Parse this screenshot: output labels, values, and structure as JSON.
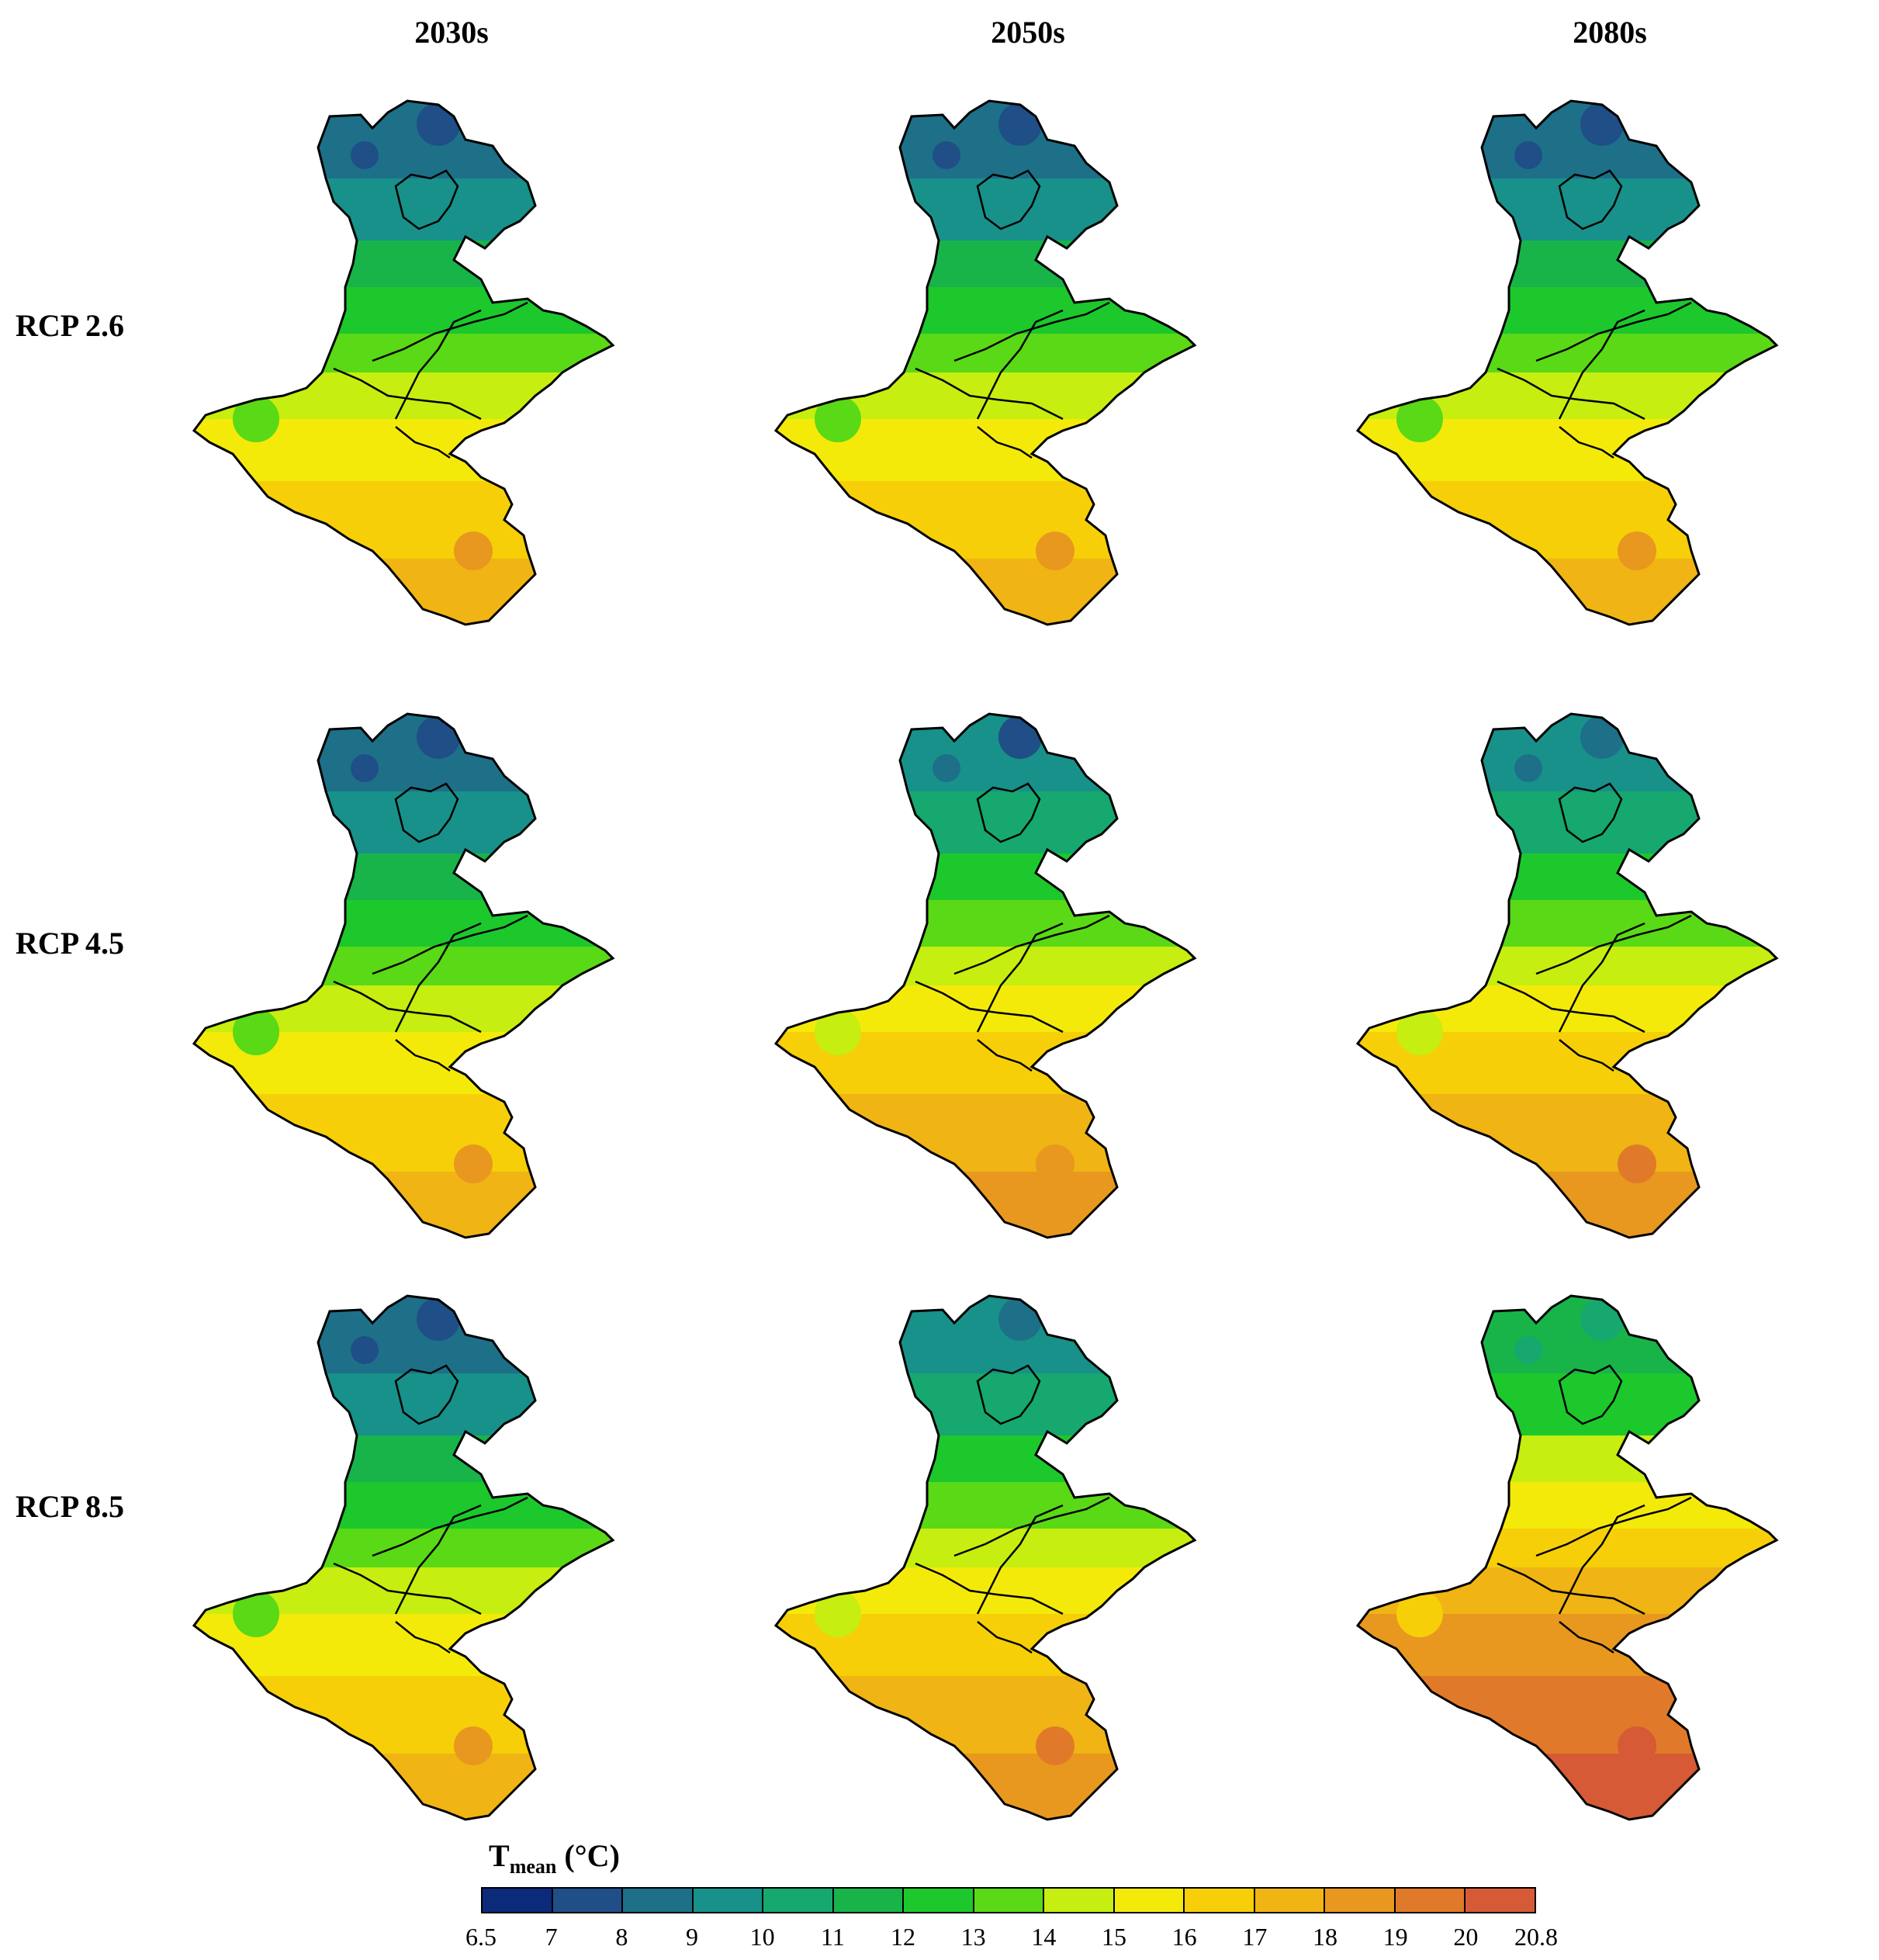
{
  "columns": [
    "2030s",
    "2050s",
    "2080s"
  ],
  "rows": [
    "RCP 2.6",
    "RCP 4.5",
    "RCP 8.5"
  ],
  "legend": {
    "title_main": "T",
    "title_sub": "mean",
    "title_unit": " (°C)",
    "ticks": [
      "6.5",
      "7",
      "8",
      "9",
      "10",
      "11",
      "12",
      "13",
      "14",
      "15",
      "16",
      "17",
      "18",
      "19",
      "20",
      "20.8"
    ],
    "colors": [
      "#0b2a7a",
      "#1f4f86",
      "#1d7088",
      "#18918a",
      "#16a86f",
      "#18b44a",
      "#1cc82c",
      "#5ad916",
      "#c6ee10",
      "#f4ea0a",
      "#f6cf08",
      "#f0b414",
      "#e8981e",
      "#e07a2a",
      "#d65a36"
    ]
  },
  "panels": [
    {
      "row": "RCP 2.6",
      "col": "2030s",
      "shift": 0
    },
    {
      "row": "RCP 2.6",
      "col": "2050s",
      "shift": 0.2
    },
    {
      "row": "RCP 2.6",
      "col": "2080s",
      "shift": 0.1
    },
    {
      "row": "RCP 4.5",
      "col": "2030s",
      "shift": 0.2
    },
    {
      "row": "RCP 4.5",
      "col": "2050s",
      "shift": 0.6
    },
    {
      "row": "RCP 4.5",
      "col": "2080s",
      "shift": 1.2
    },
    {
      "row": "RCP 8.5",
      "col": "2030s",
      "shift": 0.2
    },
    {
      "row": "RCP 8.5",
      "col": "2050s",
      "shift": 1.4
    },
    {
      "row": "RCP 8.5",
      "col": "2080s",
      "shift": 3.2
    }
  ]
}
